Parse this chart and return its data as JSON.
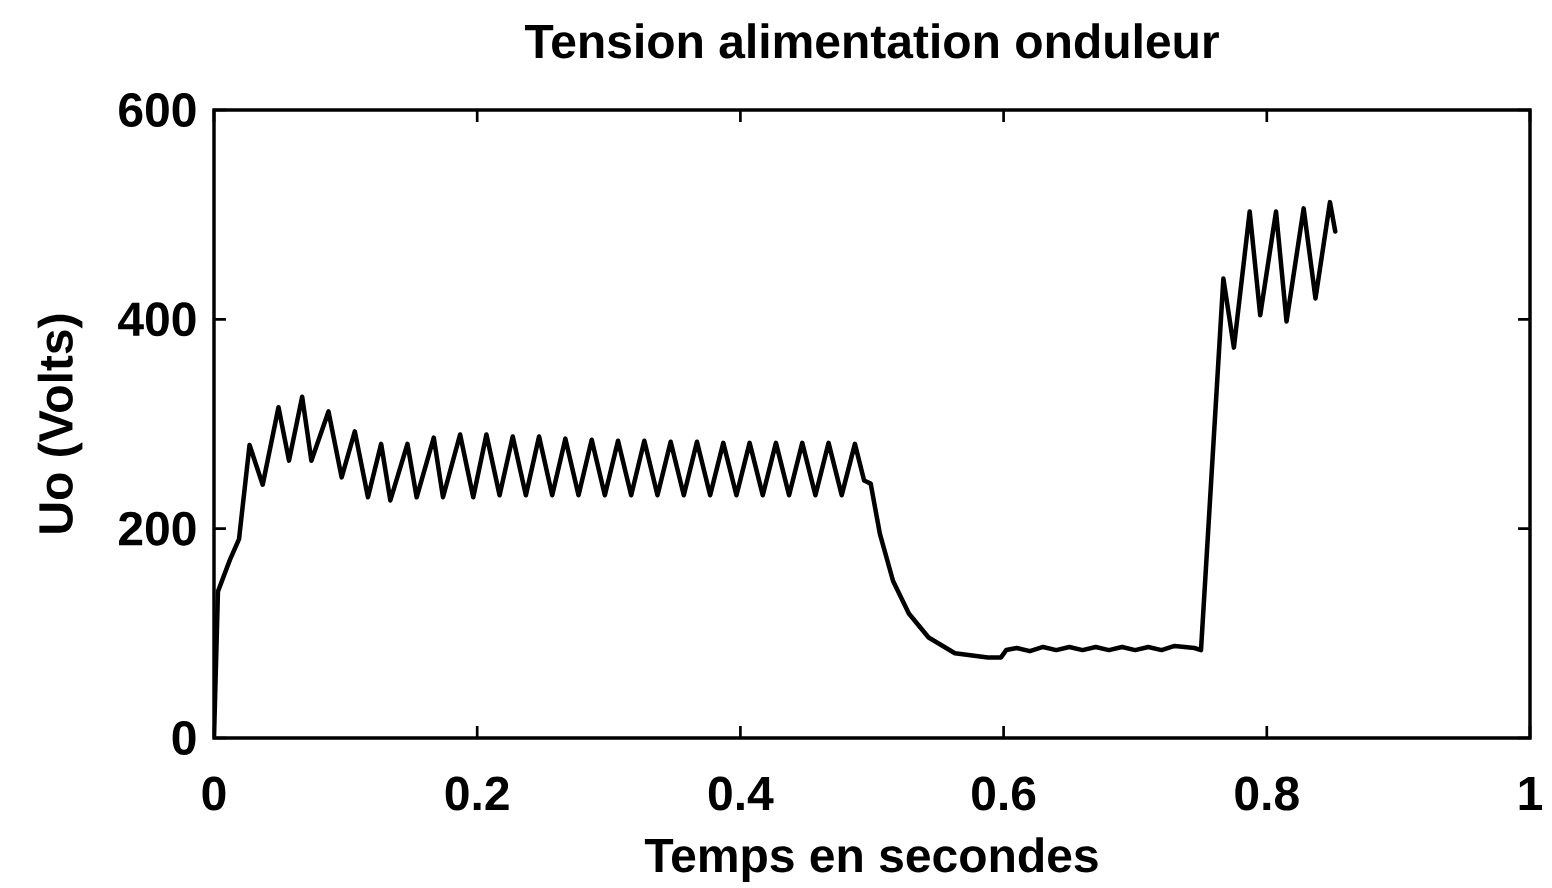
{
  "chart_data": {
    "type": "line",
    "title": "Tension alimentation onduleur",
    "xlabel": "Temps en secondes",
    "ylabel": "Uo (Volts)",
    "x": [
      0,
      0.003,
      0.012,
      0.019,
      0.027,
      0.037,
      0.049,
      0.057,
      0.067,
      0.074,
      0.087,
      0.097,
      0.107,
      0.117,
      0.127,
      0.134,
      0.147,
      0.154,
      0.167,
      0.174,
      0.187,
      0.197,
      0.207,
      0.217,
      0.227,
      0.237,
      0.247,
      0.257,
      0.267,
      0.277,
      0.287,
      0.297,
      0.307,
      0.317,
      0.327,
      0.337,
      0.347,
      0.357,
      0.367,
      0.377,
      0.387,
      0.397,
      0.407,
      0.417,
      0.427,
      0.437,
      0.447,
      0.457,
      0.467,
      0.477,
      0.487,
      0.494,
      0.499,
      0.506,
      0.516,
      0.528,
      0.543,
      0.563,
      0.588,
      0.598,
      0.602,
      0.61,
      0.62,
      0.63,
      0.64,
      0.65,
      0.66,
      0.67,
      0.68,
      0.69,
      0.7,
      0.71,
      0.72,
      0.73,
      0.745,
      0.75,
      0.767,
      0.775,
      0.787,
      0.795,
      0.807,
      0.815,
      0.828,
      0.837,
      0.848,
      0.852
    ],
    "values": [
      0,
      140,
      170,
      190,
      280,
      242,
      316,
      265,
      326,
      265,
      312,
      249,
      293,
      230,
      281,
      227,
      281,
      230,
      287,
      230,
      290,
      230,
      290,
      232,
      288,
      232,
      288,
      232,
      286,
      232,
      285,
      232,
      284,
      232,
      284,
      232,
      283,
      232,
      283,
      232,
      282,
      232,
      282,
      232,
      282,
      232,
      282,
      232,
      282,
      232,
      281,
      246,
      243,
      195,
      150,
      119,
      96,
      81,
      77,
      77,
      84,
      86,
      83,
      87,
      84,
      87,
      84,
      87,
      84,
      87,
      84,
      87,
      84,
      88,
      86,
      84,
      439,
      373,
      503,
      404,
      503,
      398,
      506,
      420,
      512,
      484
    ],
    "color": "#000000",
    "xlim": [
      0,
      1
    ],
    "ylim": [
      0,
      600
    ],
    "xticks": [
      0,
      0.2,
      0.4,
      0.6,
      0.8,
      1
    ],
    "yticks": [
      0,
      200,
      400,
      600
    ]
  }
}
